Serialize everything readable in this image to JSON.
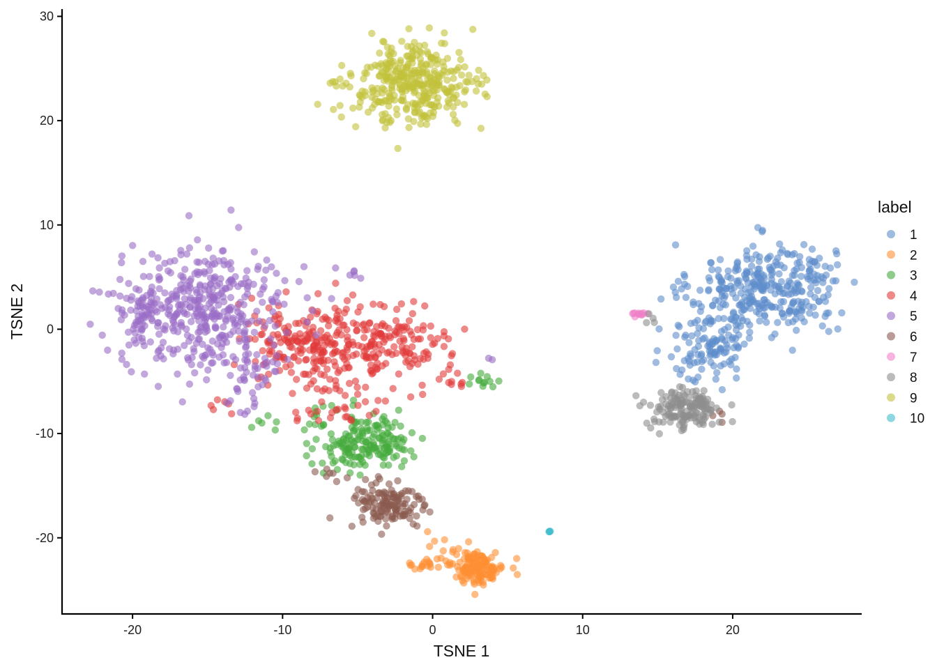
{
  "chart_data": {
    "type": "scatter",
    "title": "",
    "xlabel": "TSNE 1",
    "ylabel": "TSNE 2",
    "xlim": [
      -24.7,
      28.6
    ],
    "ylim": [
      -27.3,
      30.7
    ],
    "x_ticks": [
      -20,
      -10,
      0,
      10,
      20
    ],
    "x_tick_labels": [
      "-20",
      "-10",
      "0",
      "10",
      "20"
    ],
    "y_ticks": [
      -20,
      -10,
      0,
      10,
      20,
      30
    ],
    "y_tick_labels": [
      "-20",
      "-10",
      "0",
      "10",
      "20",
      "30"
    ],
    "grid": false,
    "point_alpha": 0.6,
    "legend": {
      "title": "label",
      "position": "right"
    },
    "series": [
      {
        "name": "1",
        "color": "#5f8ecb",
        "clusters": [
          {
            "cx": 22.0,
            "cy": 3.8,
            "sx": 2.4,
            "sy": 2.2,
            "n": 300
          },
          {
            "cx": 18.5,
            "cy": -1.5,
            "sx": 1.4,
            "sy": 2.0,
            "n": 110
          },
          {
            "cx": 25.3,
            "cy": 4.6,
            "sx": 0.9,
            "sy": 1.4,
            "n": 30
          }
        ]
      },
      {
        "name": "2",
        "color": "#ff8f33",
        "clusters": [
          {
            "cx": 3.0,
            "cy": -22.8,
            "sx": 0.9,
            "sy": 0.8,
            "n": 150
          },
          {
            "cx": -0.5,
            "cy": -22.5,
            "sx": 0.9,
            "sy": 0.25,
            "n": 18
          },
          {
            "cx": 0.3,
            "cy": -20.2,
            "sx": 0.5,
            "sy": 0.6,
            "n": 6
          }
        ]
      },
      {
        "name": "3",
        "color": "#44aa3c",
        "clusters": [
          {
            "cx": -3.8,
            "cy": -10.8,
            "sx": 1.1,
            "sy": 1.2,
            "n": 130
          },
          {
            "cx": -6.5,
            "cy": -10.5,
            "sx": 1.4,
            "sy": 1.8,
            "n": 55
          },
          {
            "cx": 3.3,
            "cy": -5.0,
            "sx": 0.6,
            "sy": 0.3,
            "n": 12
          },
          {
            "cx": -11.2,
            "cy": -8.8,
            "sx": 0.6,
            "sy": 0.5,
            "n": 6
          }
        ]
      },
      {
        "name": "4",
        "color": "#e13a3a",
        "clusters": [
          {
            "cx": -7.2,
            "cy": -1.8,
            "sx": 2.0,
            "sy": 2.2,
            "n": 190
          },
          {
            "cx": -2.5,
            "cy": -1.6,
            "sx": 1.8,
            "sy": 1.8,
            "n": 130
          },
          {
            "cx": -10.5,
            "cy": -0.5,
            "sx": 1.1,
            "sy": 1.7,
            "n": 50
          },
          {
            "cx": -6.0,
            "cy": -7.5,
            "sx": 1.5,
            "sy": 0.8,
            "n": 25
          },
          {
            "cx": 1.8,
            "cy": -5.0,
            "sx": 0.7,
            "sy": 0.3,
            "n": 8
          },
          {
            "cx": -13.5,
            "cy": -7.2,
            "sx": 0.8,
            "sy": 0.6,
            "n": 6
          }
        ]
      },
      {
        "name": "5",
        "color": "#9a6cc7",
        "clusters": [
          {
            "cx": -15.3,
            "cy": 1.8,
            "sx": 2.8,
            "sy": 2.9,
            "n": 400
          },
          {
            "cx": -19.5,
            "cy": 1.5,
            "sx": 1.0,
            "sy": 1.3,
            "n": 45
          },
          {
            "cx": -12.0,
            "cy": -3.5,
            "sx": 1.0,
            "sy": 1.4,
            "n": 35
          },
          {
            "cx": -12.5,
            "cy": -7.5,
            "sx": 0.8,
            "sy": 0.6,
            "n": 8
          },
          {
            "cx": -5.0,
            "cy": 5.2,
            "sx": 0.4,
            "sy": 0.3,
            "n": 5
          },
          {
            "cx": 3.9,
            "cy": -2.8,
            "sx": 0.1,
            "sy": 0.1,
            "n": 2
          }
        ]
      },
      {
        "name": "6",
        "color": "#8b5a4e",
        "clusters": [
          {
            "cx": -3.0,
            "cy": -16.8,
            "sx": 1.2,
            "sy": 1.3,
            "n": 130
          },
          {
            "cx": -7.0,
            "cy": -14.5,
            "sx": 0.8,
            "sy": 0.6,
            "n": 7
          },
          {
            "cx": 19.0,
            "cy": -8.5,
            "sx": 0.3,
            "sy": 0.3,
            "n": 4
          }
        ]
      },
      {
        "name": "7",
        "color": "#ee80c8",
        "clusters": [
          {
            "cx": 13.7,
            "cy": 1.4,
            "sx": 0.4,
            "sy": 0.2,
            "n": 12
          }
        ]
      },
      {
        "name": "8",
        "color": "#8d8d8d",
        "clusters": [
          {
            "cx": 16.8,
            "cy": -7.7,
            "sx": 1.2,
            "sy": 1.0,
            "n": 150
          },
          {
            "cx": 14.6,
            "cy": 1.0,
            "sx": 0.3,
            "sy": 0.3,
            "n": 4
          }
        ]
      },
      {
        "name": "9",
        "color": "#c2c13a",
        "clusters": [
          {
            "cx": -1.3,
            "cy": 23.5,
            "sx": 2.1,
            "sy": 1.9,
            "n": 360
          }
        ]
      },
      {
        "name": "10",
        "color": "#3fbccc",
        "clusters": [
          {
            "cx": 7.8,
            "cy": -19.4,
            "sx": 0.03,
            "sy": 0.03,
            "n": 4
          }
        ]
      }
    ]
  }
}
